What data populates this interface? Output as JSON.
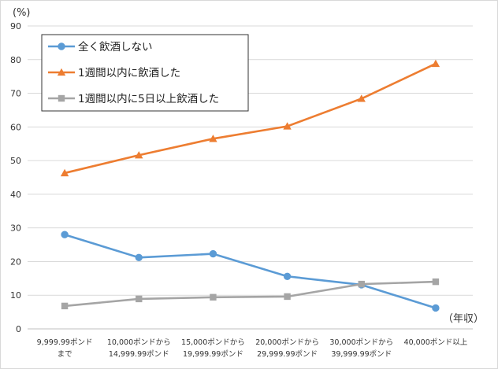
{
  "chart_data": {
    "type": "line",
    "y_unit_label": "(%)",
    "x_unit_label": "（年収）",
    "ylim": [
      0,
      90
    ],
    "yticks": [
      0,
      10,
      20,
      30,
      40,
      50,
      60,
      70,
      80,
      90
    ],
    "grid": true,
    "legend_position": "top-left",
    "categories": [
      [
        "9,999.99ポンド",
        "まで"
      ],
      [
        "10,000ポンドから",
        "14,999.99ポンド"
      ],
      [
        "15,000ポンドから",
        "19,999.99ポンド"
      ],
      [
        "20,000ポンドから",
        "29,999.99ポンド"
      ],
      [
        "30,000ポンドから",
        "39,999.99ポンド"
      ],
      [
        "40,000ポンド以上"
      ]
    ],
    "series": [
      {
        "name": "全く飲酒しない",
        "color": "#5B9BD5",
        "marker": "circle",
        "values": [
          28.0,
          21.2,
          22.3,
          15.6,
          13.1,
          6.2
        ]
      },
      {
        "name": "1週間以内に飲酒した",
        "color": "#ED7D31",
        "marker": "triangle",
        "values": [
          46.3,
          51.6,
          56.5,
          60.2,
          68.4,
          78.8
        ]
      },
      {
        "name": "1週間以内に5日以上飲酒した",
        "color": "#A5A5A5",
        "marker": "square",
        "values": [
          6.8,
          8.9,
          9.4,
          9.6,
          13.3,
          14.0
        ]
      }
    ]
  }
}
